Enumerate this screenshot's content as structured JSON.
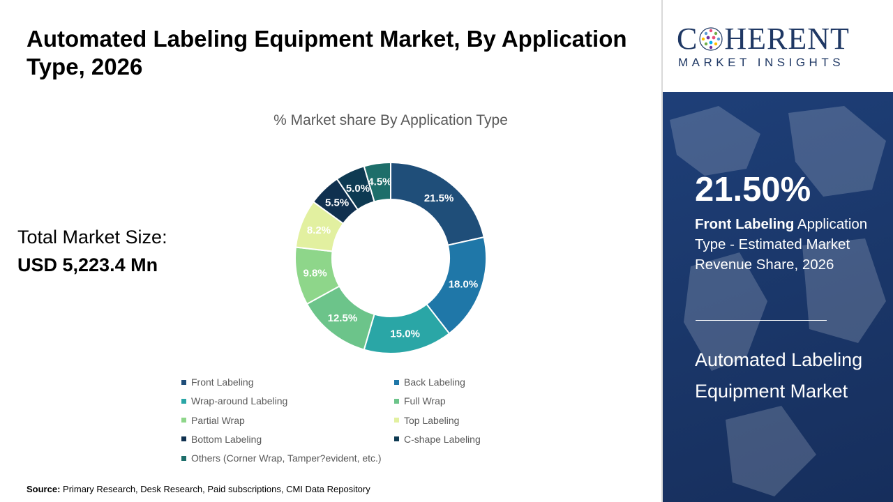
{
  "header": {
    "title": "Automated Labeling Equipment Market, By Application Type, 2026"
  },
  "total_market": {
    "label": "Total Market Size:",
    "value": "USD 5,223.4 Mn"
  },
  "chart_data": {
    "type": "pie",
    "title": "% Market share By Application Type",
    "donut": true,
    "categories": [
      "Front Labeling",
      "Back Labeling",
      "Wrap-around Labeling",
      "Full Wrap",
      "Partial Wrap",
      "Top Labeling",
      "Bottom Labeling",
      "C-shape Labeling",
      "Others (Corner Wrap, Tamper?evident, etc.)"
    ],
    "values": [
      21.5,
      18.0,
      15.0,
      12.5,
      9.8,
      8.2,
      5.5,
      5.0,
      4.5
    ],
    "data_labels": [
      "21.5%",
      "18.0%",
      "15.0%",
      "12.5%",
      "9.8%",
      "8.2%",
      "5.5%",
      "5.0%",
      "4.5%"
    ],
    "colors": [
      "#1f4e79",
      "#1f77a8",
      "#2aa6a6",
      "#6cc48a",
      "#8ed68a",
      "#e2f0a0",
      "#10304f",
      "#0e3a52",
      "#1d6e6a"
    ],
    "label_colors": [
      "#ffffff",
      "#ffffff",
      "#ffffff",
      "#ffffff",
      "#ffffff",
      "#ffffff",
      "#ffffff",
      "#ffffff",
      "#ffffff"
    ],
    "legend_position": "bottom"
  },
  "source": {
    "label": "Source:",
    "text": "Primary Research, Desk Research, Paid subscriptions, CMI Data Repository"
  },
  "brand": {
    "logo_left": "C",
    "logo_right": "HERENT",
    "logo_sub": "MARKET INSIGHTS",
    "globe_icon": "globe-dots-icon",
    "color": "#1f3864"
  },
  "highlight": {
    "value": "21.50%",
    "desc_bold": "Front Labeling",
    "desc_rest": " Application Type - Estimated Market Revenue Share, 2026",
    "market_name": "Automated Labeling Equipment Market"
  }
}
